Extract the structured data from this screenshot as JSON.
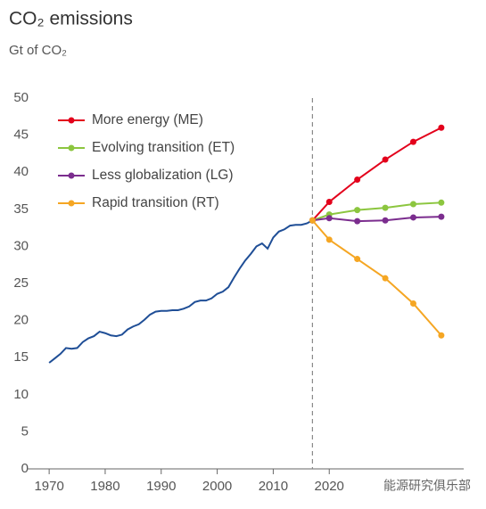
{
  "chart_data": {
    "type": "line",
    "title": "CO₂ emissions",
    "subtitle": "Gt of CO₂",
    "watermark": "能源研究俱乐部",
    "xlim": [
      1966,
      2044
    ],
    "xticks": [
      1970,
      1980,
      1990,
      2000,
      2010,
      2020
    ],
    "ylim": [
      0,
      50
    ],
    "yticks": [
      0,
      5,
      10,
      15,
      20,
      25,
      30,
      35,
      40,
      45,
      50
    ],
    "reference_line": {
      "x": 2017,
      "color": "#888888",
      "dashed": true
    },
    "legend": "upper left",
    "series": [
      {
        "color": "#1f4e96",
        "markers": false,
        "x": [
          1970,
          1971,
          1972,
          1973,
          1974,
          1975,
          1976,
          1977,
          1978,
          1979,
          1980,
          1981,
          1982,
          1983,
          1984,
          1985,
          1986,
          1987,
          1988,
          1989,
          1990,
          1991,
          1992,
          1993,
          1994,
          1995,
          1996,
          1997,
          1998,
          1999,
          2000,
          2001,
          2002,
          2003,
          2004,
          2005,
          2006,
          2007,
          2008,
          2009,
          2010,
          2011,
          2012,
          2013,
          2014,
          2015,
          2016,
          2017
        ],
        "values": [
          14.3,
          14.9,
          15.5,
          16.3,
          16.2,
          16.3,
          17.1,
          17.6,
          17.9,
          18.5,
          18.3,
          18.0,
          17.9,
          18.1,
          18.8,
          19.2,
          19.5,
          20.1,
          20.8,
          21.2,
          21.3,
          21.3,
          21.4,
          21.4,
          21.6,
          21.9,
          22.5,
          22.7,
          22.7,
          23.0,
          23.6,
          23.9,
          24.5,
          25.8,
          27.0,
          28.1,
          29.0,
          30.0,
          30.4,
          29.7,
          31.2,
          32.0,
          32.3,
          32.8,
          32.9,
          32.9,
          33.1,
          33.5
        ]
      },
      {
        "name": "More energy (ME)",
        "color": "#e3001b",
        "markers": true,
        "x": [
          2017,
          2020,
          2025,
          2030,
          2035,
          2040
        ],
        "values": [
          33.5,
          36,
          39,
          41.7,
          44.1,
          46
        ]
      },
      {
        "name": "Evolving transition (ET)",
        "color": "#8cc63f",
        "markers": true,
        "x": [
          2017,
          2020,
          2025,
          2030,
          2035,
          2040
        ],
        "values": [
          33.5,
          34.3,
          34.9,
          35.2,
          35.7,
          35.9
        ]
      },
      {
        "name": "Less globalization (LG)",
        "color": "#7b2d8e",
        "markers": true,
        "x": [
          2017,
          2020,
          2025,
          2030,
          2035,
          2040
        ],
        "values": [
          33.5,
          33.8,
          33.4,
          33.5,
          33.9,
          34.0
        ]
      },
      {
        "name": "Rapid transition (RT)",
        "color": "#f5a623",
        "markers": true,
        "x": [
          2017,
          2020,
          2025,
          2030,
          2035,
          2040
        ],
        "values": [
          33.5,
          30.9,
          28.3,
          25.7,
          22.3,
          18.0
        ]
      }
    ]
  }
}
